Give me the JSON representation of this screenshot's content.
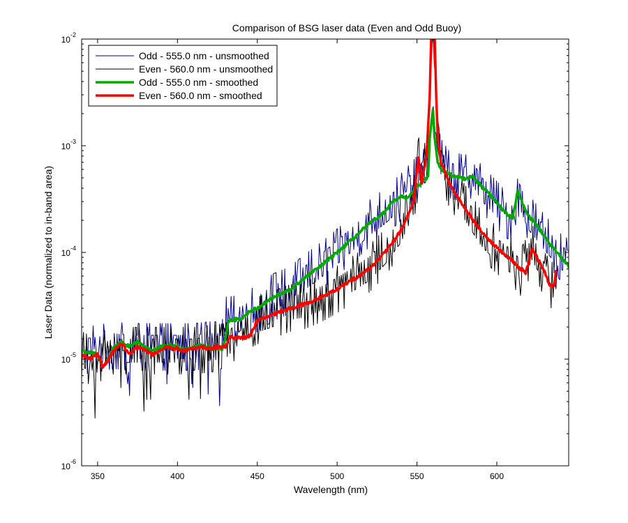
{
  "chart_data": {
    "type": "line",
    "title": "Comparison of BSG laser data (Even and Odd Buoy)",
    "xlabel": "Wavelength (nm)",
    "ylabel": "Laser Data (normalized to in-band area)",
    "xlim": [
      340,
      645
    ],
    "ylim": [
      1e-06,
      0.01
    ],
    "yscale": "log",
    "grid": false,
    "legend_position": "top-left",
    "x_ticks": [
      350,
      400,
      450,
      500,
      550,
      600
    ],
    "y_ticks": [
      {
        "value": 1e-06,
        "base": "10",
        "exp": "-6"
      },
      {
        "value": 1e-05,
        "base": "10",
        "exp": "-5"
      },
      {
        "value": 0.0001,
        "base": "10",
        "exp": "-4"
      },
      {
        "value": 0.001,
        "base": "10",
        "exp": "-3"
      },
      {
        "value": 0.01,
        "base": "10",
        "exp": "-2"
      }
    ],
    "series": [
      {
        "name": "Odd - 555.0 nm - unsmoothed",
        "color": "#00008b",
        "width": 1,
        "style": "noisy",
        "noise": 0.22,
        "x_range": [
          340,
          645
        ],
        "points": [
          [
            340,
            1.2e-05
          ],
          [
            350,
            1.25e-05
          ],
          [
            360,
            1.35e-05
          ],
          [
            370,
            1.3e-05
          ],
          [
            380,
            1.3e-05
          ],
          [
            390,
            1.3e-05
          ],
          [
            400,
            1.3e-05
          ],
          [
            410,
            1.3e-05
          ],
          [
            420,
            1.35e-05
          ],
          [
            428,
            1.35e-05
          ],
          [
            430,
            2.3e-05
          ],
          [
            440,
            2.4e-05
          ],
          [
            450,
            3e-05
          ],
          [
            460,
            3.8e-05
          ],
          [
            470,
            4.4e-05
          ],
          [
            480,
            5.8e-05
          ],
          [
            490,
            7.5e-05
          ],
          [
            500,
            0.0001
          ],
          [
            510,
            0.000135
          ],
          [
            520,
            0.000185
          ],
          [
            530,
            0.00024
          ],
          [
            540,
            0.00033
          ],
          [
            550,
            0.00048
          ],
          [
            556,
            0.0006
          ],
          [
            558,
            0.0012
          ],
          [
            560,
            0.0023
          ],
          [
            562,
            0.0012
          ],
          [
            565,
            0.0007
          ],
          [
            570,
            0.00054
          ],
          [
            580,
            0.00049
          ],
          [
            585,
            0.00055
          ],
          [
            590,
            0.0004
          ],
          [
            600,
            0.00028
          ],
          [
            605,
            0.00023
          ],
          [
            610,
            0.00021
          ],
          [
            613,
            0.00038
          ],
          [
            616,
            0.00029
          ],
          [
            620,
            0.00021
          ],
          [
            630,
            0.000135
          ],
          [
            640,
            9e-05
          ],
          [
            645,
            8e-05
          ]
        ]
      },
      {
        "name": "Even - 560.0 nm - unsmoothed",
        "color": "#000000",
        "width": 1,
        "style": "noisy",
        "noise": 0.22,
        "x_range": [
          340,
          638
        ],
        "points": [
          [
            340,
            1.1e-05
          ],
          [
            345,
            1e-05
          ],
          [
            350,
            1.05e-05
          ],
          [
            360,
            1.2e-05
          ],
          [
            370,
            1.2e-05
          ],
          [
            380,
            1.2e-05
          ],
          [
            390,
            1.2e-05
          ],
          [
            400,
            1.2e-05
          ],
          [
            410,
            1.2e-05
          ],
          [
            420,
            1.25e-05
          ],
          [
            430,
            1.3e-05
          ],
          [
            440,
            1.9e-05
          ],
          [
            450,
            2.3e-05
          ],
          [
            460,
            2.6e-05
          ],
          [
            470,
            3e-05
          ],
          [
            480,
            3.2e-05
          ],
          [
            490,
            3.7e-05
          ],
          [
            500,
            4.5e-05
          ],
          [
            510,
            5.6e-05
          ],
          [
            520,
            7e-05
          ],
          [
            530,
            0.0001
          ],
          [
            540,
            0.00016
          ],
          [
            548,
            0.0003
          ],
          [
            551,
            0.00075
          ],
          [
            553,
            0.00045
          ],
          [
            556,
            0.0008
          ],
          [
            558,
            0.003
          ],
          [
            560,
            0.012
          ],
          [
            562,
            0.003
          ],
          [
            565,
            0.0007
          ],
          [
            570,
            0.00045
          ],
          [
            580,
            0.00026
          ],
          [
            590,
            0.00015
          ],
          [
            600,
            0.000105
          ],
          [
            610,
            8e-05
          ],
          [
            615,
            6.5e-05
          ],
          [
            619,
            8.5e-05
          ],
          [
            622,
            0.00011
          ],
          [
            626,
            8.5e-05
          ],
          [
            630,
            6e-05
          ],
          [
            635,
            4.8e-05
          ],
          [
            638,
            6.5e-05
          ]
        ]
      },
      {
        "name": "Odd - 555.0 nm - smoothed",
        "color": "#00aa00",
        "width": 3.5,
        "style": "smooth",
        "noise": 0.03,
        "x_range": [
          340,
          645
        ],
        "points": [
          [
            340,
            1.2e-05
          ],
          [
            345,
            1.15e-05
          ],
          [
            350,
            1.1e-05
          ],
          [
            353,
            8.5e-06
          ],
          [
            356,
            9.5e-06
          ],
          [
            360,
            1.3e-05
          ],
          [
            365,
            1.45e-05
          ],
          [
            370,
            1.3e-05
          ],
          [
            375,
            1.45e-05
          ],
          [
            380,
            1.3e-05
          ],
          [
            385,
            1.2e-05
          ],
          [
            390,
            1.3e-05
          ],
          [
            395,
            1.35e-05
          ],
          [
            400,
            1.3e-05
          ],
          [
            405,
            1.25e-05
          ],
          [
            410,
            1.3e-05
          ],
          [
            415,
            1.35e-05
          ],
          [
            420,
            1.3e-05
          ],
          [
            425,
            1.25e-05
          ],
          [
            428,
            1.2e-05
          ],
          [
            430,
            1.6e-05
          ],
          [
            432,
            2.3e-05
          ],
          [
            440,
            2.4e-05
          ],
          [
            445,
            2.8e-05
          ],
          [
            450,
            3e-05
          ],
          [
            460,
            3.8e-05
          ],
          [
            470,
            4.4e-05
          ],
          [
            480,
            5.8e-05
          ],
          [
            490,
            7.5e-05
          ],
          [
            500,
            0.0001
          ],
          [
            510,
            0.000135
          ],
          [
            520,
            0.000185
          ],
          [
            530,
            0.00024
          ],
          [
            535,
            0.0003
          ],
          [
            540,
            0.00033
          ],
          [
            545,
            0.00033
          ],
          [
            550,
            0.00042
          ],
          [
            555,
            0.00048
          ],
          [
            557,
            0.00052
          ],
          [
            558,
            0.0012
          ],
          [
            560,
            0.0022
          ],
          [
            561,
            0.0012
          ],
          [
            563,
            0.0007
          ],
          [
            565,
            0.0006
          ],
          [
            570,
            0.00054
          ],
          [
            575,
            0.00051
          ],
          [
            580,
            0.00049
          ],
          [
            585,
            0.00052
          ],
          [
            590,
            0.00042
          ],
          [
            595,
            0.00036
          ],
          [
            600,
            0.00029
          ],
          [
            605,
            0.00024
          ],
          [
            610,
            0.00021
          ],
          [
            613,
            0.00038
          ],
          [
            616,
            0.00029
          ],
          [
            620,
            0.00022
          ],
          [
            625,
            0.00018
          ],
          [
            630,
            0.00014
          ],
          [
            635,
            0.00011
          ],
          [
            640,
            9e-05
          ],
          [
            645,
            7.5e-05
          ]
        ]
      },
      {
        "name": "Even - 560.0 nm - smoothed",
        "color": "#ff0000",
        "width": 3.5,
        "style": "smooth",
        "noise": 0.03,
        "x_range": [
          340,
          637
        ],
        "points": [
          [
            340,
            1.1e-05
          ],
          [
            345,
            1e-05
          ],
          [
            350,
            1.1e-05
          ],
          [
            353,
            8.5e-06
          ],
          [
            356,
            9.5e-06
          ],
          [
            360,
            1.2e-05
          ],
          [
            365,
            1.4e-05
          ],
          [
            370,
            1.1e-05
          ],
          [
            375,
            1.3e-05
          ],
          [
            380,
            1.2e-05
          ],
          [
            385,
            1.1e-05
          ],
          [
            390,
            1.25e-05
          ],
          [
            395,
            1.3e-05
          ],
          [
            400,
            1.25e-05
          ],
          [
            405,
            1.2e-05
          ],
          [
            410,
            1.25e-05
          ],
          [
            415,
            1.3e-05
          ],
          [
            420,
            1.25e-05
          ],
          [
            425,
            1.3e-05
          ],
          [
            430,
            1.3e-05
          ],
          [
            433,
            1.6e-05
          ],
          [
            440,
            1.6e-05
          ],
          [
            445,
            1.6e-05
          ],
          [
            450,
            2.3e-05
          ],
          [
            460,
            2.6e-05
          ],
          [
            470,
            3e-05
          ],
          [
            480,
            3.3e-05
          ],
          [
            490,
            3.8e-05
          ],
          [
            500,
            4.5e-05
          ],
          [
            510,
            5.6e-05
          ],
          [
            520,
            7e-05
          ],
          [
            530,
            0.0001
          ],
          [
            540,
            0.00016
          ],
          [
            548,
            0.0003
          ],
          [
            550,
            0.0006
          ],
          [
            551,
            0.00075
          ],
          [
            553,
            0.00045
          ],
          [
            556,
            0.0008
          ],
          [
            558,
            0.003
          ],
          [
            559,
            0.012
          ],
          [
            561,
            0.012
          ],
          [
            562,
            0.003
          ],
          [
            563,
            0.0012
          ],
          [
            565,
            0.0007
          ],
          [
            570,
            0.00045
          ],
          [
            575,
            0.00034
          ],
          [
            580,
            0.00026
          ],
          [
            590,
            0.00016
          ],
          [
            600,
            0.00011
          ],
          [
            605,
            9.5e-05
          ],
          [
            610,
            8.2e-05
          ],
          [
            615,
            7e-05
          ],
          [
            618,
            6.5e-05
          ],
          [
            620,
            8e-05
          ],
          [
            622,
            0.00011
          ],
          [
            625,
            9e-05
          ],
          [
            630,
            6.5e-05
          ],
          [
            633,
            5e-05
          ],
          [
            636,
            4.8e-05
          ],
          [
            637,
            6.5e-05
          ]
        ]
      }
    ]
  }
}
